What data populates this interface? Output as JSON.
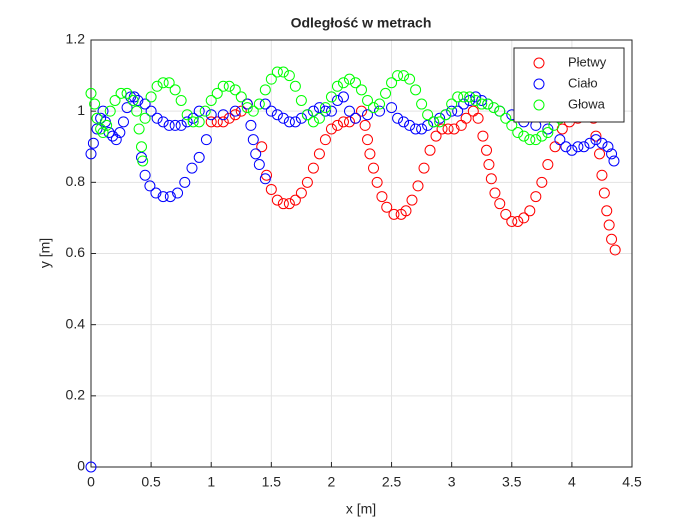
{
  "chart_data": {
    "type": "scatter",
    "title": "Odległość w metrach",
    "xlabel": "x [m]",
    "ylabel": "y [m]",
    "xlim": [
      0,
      4.5
    ],
    "ylim": [
      0,
      1.2
    ],
    "xticks": [
      0,
      0.5,
      1,
      1.5,
      2,
      2.5,
      3,
      3.5,
      4,
      4.5
    ],
    "yticks": [
      0,
      0.2,
      0.4,
      0.6,
      0.8,
      1,
      1.2
    ],
    "grid": true,
    "legend": "northeast",
    "series": [
      {
        "name": "Płetwy",
        "color": "#ff0000",
        "x": [
          1.0,
          1.05,
          1.1,
          1.15,
          1.2,
          1.25,
          1.3,
          1.42,
          1.46,
          1.5,
          1.55,
          1.6,
          1.65,
          1.7,
          1.75,
          1.8,
          1.85,
          1.9,
          1.95,
          2.0,
          2.05,
          2.1,
          2.15,
          2.2,
          2.25,
          2.28,
          2.3,
          2.32,
          2.35,
          2.38,
          2.42,
          2.46,
          2.52,
          2.58,
          2.62,
          2.67,
          2.72,
          2.77,
          2.82,
          2.87,
          2.92,
          2.97,
          3.02,
          3.08,
          3.12,
          3.18,
          3.22,
          3.26,
          3.29,
          3.31,
          3.33,
          3.36,
          3.4,
          3.45,
          3.5,
          3.55,
          3.6,
          3.65,
          3.7,
          3.75,
          3.8,
          3.86,
          3.92,
          3.98,
          4.05,
          4.12,
          4.18,
          4.2,
          4.23,
          4.25,
          4.27,
          4.29,
          4.31,
          4.33,
          4.36
        ],
        "values": [
          0.97,
          0.97,
          0.97,
          0.98,
          0.99,
          1.0,
          1.02,
          0.9,
          0.82,
          0.78,
          0.75,
          0.74,
          0.74,
          0.75,
          0.77,
          0.8,
          0.84,
          0.88,
          0.92,
          0.95,
          0.96,
          0.97,
          0.97,
          0.98,
          1.0,
          0.96,
          0.92,
          0.88,
          0.84,
          0.8,
          0.76,
          0.73,
          0.71,
          0.71,
          0.72,
          0.75,
          0.79,
          0.84,
          0.89,
          0.93,
          0.95,
          0.95,
          0.95,
          0.96,
          0.98,
          1.0,
          0.98,
          0.93,
          0.89,
          0.85,
          0.81,
          0.77,
          0.74,
          0.71,
          0.69,
          0.69,
          0.7,
          0.72,
          0.76,
          0.8,
          0.85,
          0.9,
          0.95,
          0.97,
          0.98,
          0.99,
          0.98,
          0.93,
          0.88,
          0.82,
          0.77,
          0.72,
          0.68,
          0.64,
          0.61
        ]
      },
      {
        "name": "Ciało",
        "color": "#0000ff",
        "x": [
          0,
          0,
          0.02,
          0.05,
          0.08,
          0.1,
          0.12,
          0.15,
          0.18,
          0.21,
          0.24,
          0.27,
          0.3,
          0.33,
          0.36,
          0.39,
          0.42,
          0.45,
          0.49,
          0.54,
          0.6,
          0.66,
          0.72,
          0.78,
          0.84,
          0.9,
          0.96,
          0.45,
          0.5,
          0.55,
          0.6,
          0.65,
          0.7,
          0.75,
          0.8,
          0.85,
          0.9,
          1.0,
          1.1,
          1.2,
          1.3,
          1.33,
          1.35,
          1.37,
          1.4,
          1.45,
          1.45,
          1.5,
          1.55,
          1.6,
          1.65,
          1.7,
          1.75,
          1.8,
          1.85,
          1.9,
          1.95,
          2.0,
          2.05,
          2.1,
          2.15,
          2.2,
          2.3,
          2.4,
          2.5,
          2.55,
          2.6,
          2.65,
          2.7,
          2.75,
          2.8,
          2.85,
          2.9,
          2.95,
          3.0,
          3.05,
          3.1,
          3.15,
          3.2,
          3.25,
          3.3,
          3.4,
          3.5,
          3.6,
          3.7,
          3.8,
          3.9,
          3.95,
          4.0,
          4.05,
          4.1,
          4.15,
          4.2,
          4.25,
          4.3,
          4.33,
          4.35
        ],
        "values": [
          0,
          0.88,
          0.91,
          0.95,
          0.98,
          1.0,
          0.97,
          0.94,
          0.93,
          0.92,
          0.94,
          0.97,
          1.01,
          1.04,
          1.04,
          1.03,
          0.87,
          0.82,
          0.79,
          0.77,
          0.76,
          0.76,
          0.77,
          0.8,
          0.84,
          0.87,
          0.92,
          1.02,
          1.0,
          0.98,
          0.97,
          0.96,
          0.96,
          0.96,
          0.97,
          0.98,
          1.0,
          0.99,
          0.99,
          1.0,
          1.02,
          0.96,
          0.92,
          0.88,
          0.85,
          0.81,
          1.02,
          1.0,
          0.99,
          0.98,
          0.97,
          0.97,
          0.98,
          0.99,
          1.0,
          1.01,
          1.0,
          1.0,
          1.03,
          1.04,
          1.0,
          0.98,
          0.99,
          1.0,
          1.01,
          0.98,
          0.97,
          0.96,
          0.95,
          0.95,
          0.96,
          0.97,
          0.98,
          0.99,
          1.0,
          1.0,
          1.02,
          1.03,
          1.04,
          1.03,
          1.02,
          1.0,
          0.99,
          0.97,
          0.96,
          0.95,
          0.92,
          0.9,
          0.89,
          0.9,
          0.9,
          0.91,
          0.92,
          0.91,
          0.9,
          0.88,
          0.86
        ]
      },
      {
        "name": "Głowa",
        "color": "#00ff00",
        "x": [
          0,
          0.03,
          0.05,
          0.08,
          0.1,
          0.13,
          0.16,
          0.2,
          0.25,
          0.3,
          0.35,
          0.38,
          0.4,
          0.42,
          0.43,
          0.45,
          0.5,
          0.55,
          0.6,
          0.65,
          0.7,
          0.75,
          0.8,
          0.85,
          0.9,
          0.95,
          1.0,
          1.05,
          1.1,
          1.15,
          1.2,
          1.25,
          1.3,
          1.35,
          1.4,
          1.45,
          1.5,
          1.55,
          1.6,
          1.65,
          1.7,
          1.75,
          1.8,
          1.85,
          1.9,
          1.95,
          2.0,
          2.05,
          2.1,
          2.15,
          2.2,
          2.25,
          2.3,
          2.35,
          2.4,
          2.45,
          2.5,
          2.55,
          2.6,
          2.65,
          2.7,
          2.75,
          2.8,
          2.85,
          2.9,
          2.95,
          3.0,
          3.05,
          3.1,
          3.15,
          3.2,
          3.25,
          3.3,
          3.35,
          3.4,
          3.45,
          3.5,
          3.55,
          3.6,
          3.65,
          3.7,
          3.75,
          3.8,
          3.85,
          3.9,
          3.95,
          4.0,
          4.05
        ],
        "values": [
          1.05,
          1.02,
          0.98,
          0.95,
          0.94,
          0.96,
          1.0,
          1.03,
          1.05,
          1.05,
          1.03,
          1.0,
          0.95,
          0.9,
          0.86,
          0.98,
          1.04,
          1.07,
          1.08,
          1.08,
          1.06,
          1.03,
          0.99,
          0.97,
          0.97,
          1.0,
          1.03,
          1.05,
          1.07,
          1.07,
          1.06,
          1.04,
          1.01,
          1.0,
          1.02,
          1.06,
          1.09,
          1.11,
          1.11,
          1.1,
          1.07,
          1.03,
          0.99,
          0.97,
          0.98,
          1.01,
          1.04,
          1.07,
          1.08,
          1.09,
          1.08,
          1.06,
          1.03,
          1.01,
          1.02,
          1.05,
          1.08,
          1.1,
          1.1,
          1.09,
          1.06,
          1.02,
          0.99,
          0.97,
          0.97,
          0.99,
          1.02,
          1.04,
          1.04,
          1.04,
          1.03,
          1.02,
          1.02,
          1.01,
          1.0,
          0.98,
          0.96,
          0.94,
          0.93,
          0.92,
          0.92,
          0.93,
          0.94,
          0.96,
          0.98,
          1.0,
          1.01,
          1.02
        ]
      }
    ]
  }
}
